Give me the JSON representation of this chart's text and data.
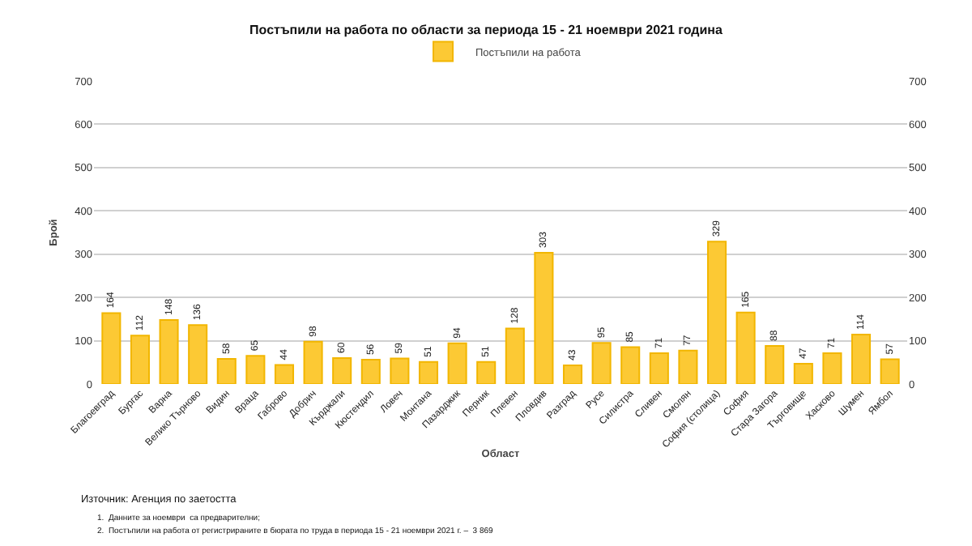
{
  "chart_data": {
    "type": "bar",
    "title": "Постъпили на работа по области за периода 15 - 21 ноември 2021 година",
    "xlabel": "Област",
    "ylabel": "Брой",
    "categories": [
      "Благоевград",
      "Бургас",
      "Варна",
      "Велико Търново",
      "Видин",
      "Враца",
      "Габрово",
      "Добрич",
      "Кърджали",
      "Кюстендил",
      "Ловеч",
      "Монтана",
      "Пазарджик",
      "Перник",
      "Плевен",
      "Пловдив",
      "Разград",
      "Русе",
      "Силистра",
      "Сливен",
      "Смолян",
      "София (столица)",
      "София",
      "Стара Загора",
      "Търговище",
      "Хасково",
      "Шумен",
      "Ямбол"
    ],
    "series": [
      {
        "name": "Постъпили на работа",
        "color": "#fcc934",
        "values": [
          164,
          112,
          148,
          136,
          58,
          65,
          44,
          98,
          60,
          56,
          59,
          51,
          94,
          51,
          128,
          303,
          43,
          95,
          85,
          71,
          77,
          329,
          165,
          88,
          47,
          71,
          114,
          57
        ]
      }
    ],
    "ylim": [
      0,
      700
    ],
    "yticks": [
      0,
      100,
      200,
      300,
      400,
      500,
      600,
      700
    ],
    "y2lim": [
      0,
      700
    ],
    "y2ticks": [
      0,
      100,
      200,
      300,
      400,
      500,
      600,
      700
    ],
    "grid": "y",
    "legend": "top",
    "data_labels": true,
    "annotations": [
      "Източник: Агенция по заетостта",
      "1.  Данните за ноември  са предварителни;",
      "2.  Постъпили на работа от регистрираните в бюрата по труда в периода 15 - 21 ноември 2021 г. –  3 869"
    ]
  }
}
